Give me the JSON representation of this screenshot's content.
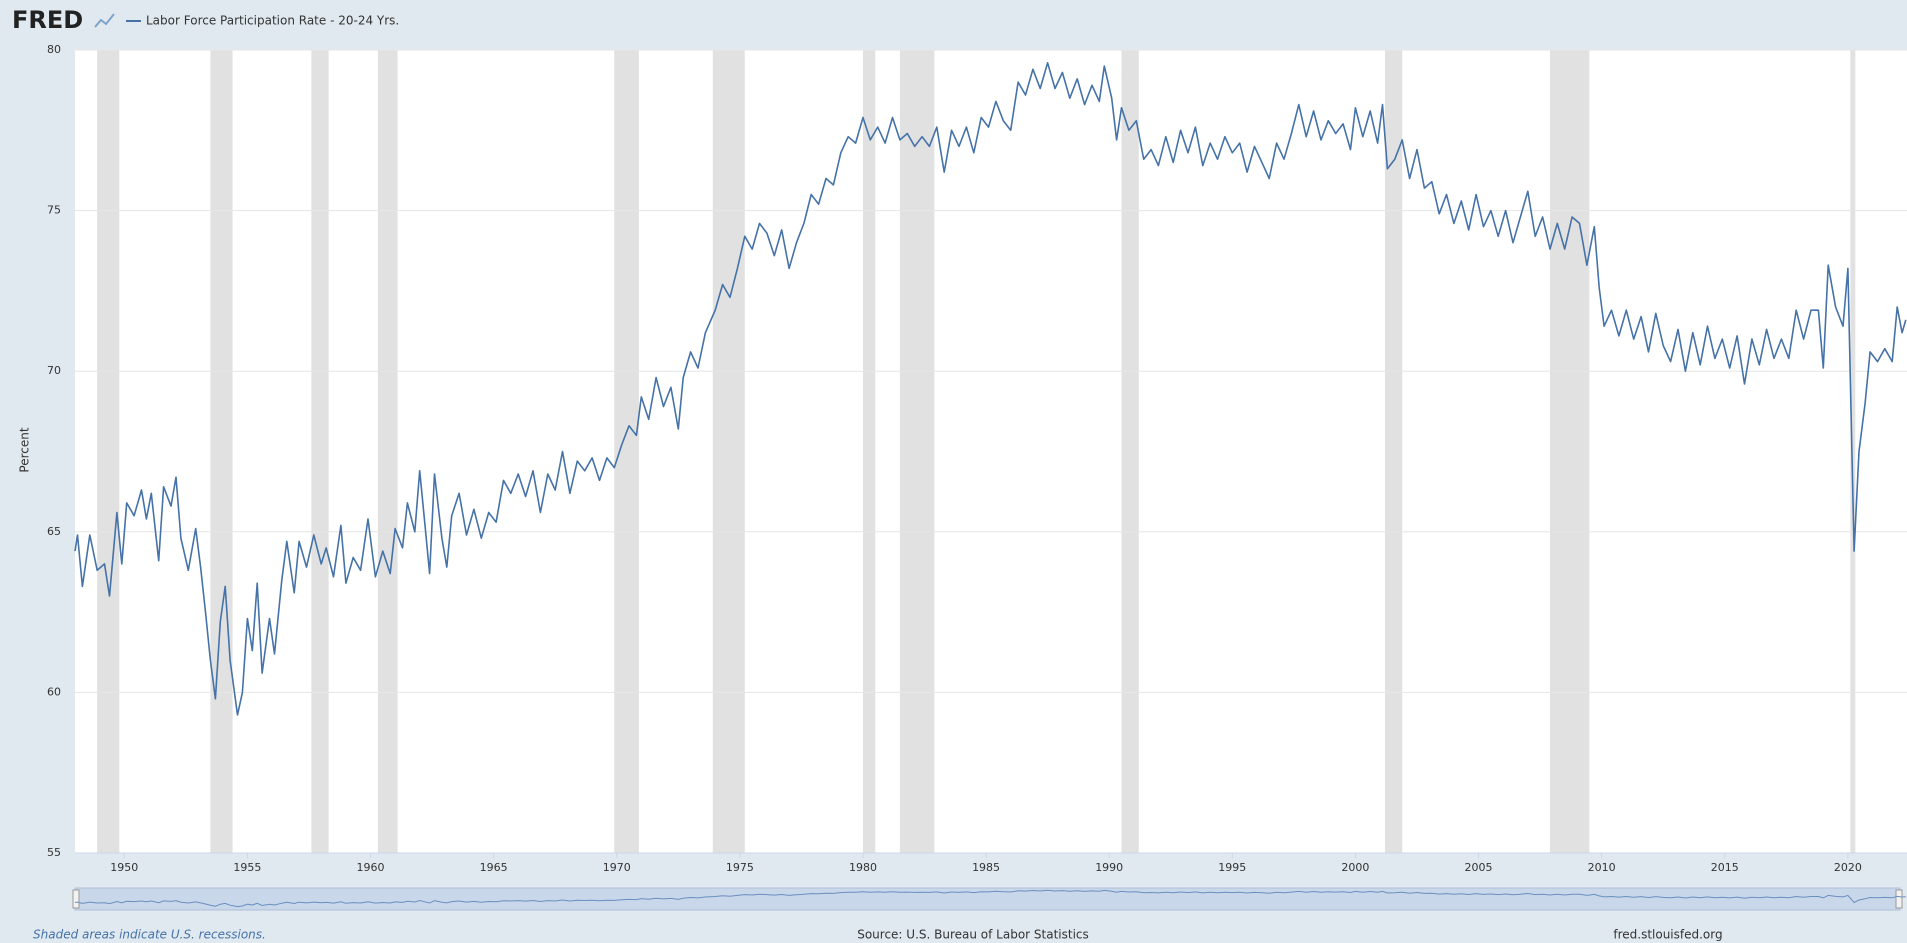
{
  "header": {
    "logo": "FRED"
  },
  "footer": {
    "note": "Shaded areas indicate U.S. recessions.",
    "source": "Source: U.S. Bureau of Labor Statistics",
    "site": "fred.stlouisfed.org"
  },
  "chart_data": {
    "type": "line",
    "ylabel": "Percent",
    "xlim": [
      1948,
      2022.4
    ],
    "ylim": [
      55,
      80
    ],
    "xticks": [
      1950,
      1955,
      1960,
      1965,
      1970,
      1975,
      1980,
      1985,
      1990,
      1995,
      2000,
      2005,
      2010,
      2015,
      2020
    ],
    "yticks": [
      55,
      60,
      65,
      70,
      75,
      80
    ],
    "grid": true,
    "recessions": [
      [
        1948.9,
        1949.8
      ],
      [
        1953.5,
        1954.4
      ],
      [
        1957.6,
        1958.3
      ],
      [
        1960.3,
        1961.1
      ],
      [
        1969.9,
        1970.9
      ],
      [
        1973.9,
        1975.2
      ],
      [
        1980.0,
        1980.5
      ],
      [
        1981.5,
        1982.9
      ],
      [
        1990.5,
        1991.2
      ],
      [
        2001.2,
        2001.9
      ],
      [
        2007.9,
        2009.5
      ],
      [
        2020.1,
        2020.3
      ]
    ],
    "recession_color": "#e1e1e1",
    "x": [
      1948.0,
      1948.1,
      1948.3,
      1948.6,
      1948.9,
      1949.2,
      1949.4,
      1949.7,
      1949.9,
      1950.1,
      1950.4,
      1950.7,
      1950.9,
      1951.1,
      1951.4,
      1951.6,
      1951.9,
      1952.1,
      1952.3,
      1952.6,
      1952.9,
      1953.1,
      1953.3,
      1953.5,
      1953.7,
      1953.9,
      1954.1,
      1954.3,
      1954.6,
      1954.8,
      1955.0,
      1955.2,
      1955.4,
      1955.6,
      1955.9,
      1956.1,
      1956.4,
      1956.6,
      1956.9,
      1957.1,
      1957.4,
      1957.7,
      1958.0,
      1958.2,
      1958.5,
      1958.8,
      1959.0,
      1959.3,
      1959.6,
      1959.9,
      1960.2,
      1960.5,
      1960.8,
      1961.0,
      1961.3,
      1961.5,
      1961.8,
      1962.0,
      1962.2,
      1962.4,
      1962.6,
      1962.9,
      1963.1,
      1963.3,
      1963.6,
      1963.9,
      1964.2,
      1964.5,
      1964.8,
      1965.1,
      1965.4,
      1965.7,
      1966.0,
      1966.3,
      1966.6,
      1966.9,
      1967.2,
      1967.5,
      1967.8,
      1968.1,
      1968.4,
      1968.7,
      1969.0,
      1969.3,
      1969.6,
      1969.9,
      1970.2,
      1970.5,
      1970.8,
      1971.0,
      1971.3,
      1971.6,
      1971.9,
      1972.2,
      1972.5,
      1972.7,
      1973.0,
      1973.3,
      1973.6,
      1974.0,
      1974.3,
      1974.6,
      1974.9,
      1975.2,
      1975.5,
      1975.8,
      1976.1,
      1976.4,
      1976.7,
      1977.0,
      1977.3,
      1977.6,
      1977.9,
      1978.2,
      1978.5,
      1978.8,
      1979.1,
      1979.4,
      1979.7,
      1980.0,
      1980.3,
      1980.6,
      1980.9,
      1981.2,
      1981.5,
      1981.8,
      1982.1,
      1982.4,
      1982.7,
      1983.0,
      1983.3,
      1983.6,
      1983.9,
      1984.2,
      1984.5,
      1984.8,
      1985.1,
      1985.4,
      1985.7,
      1986.0,
      1986.3,
      1986.6,
      1986.9,
      1987.2,
      1987.5,
      1987.8,
      1988.1,
      1988.4,
      1988.7,
      1989.0,
      1989.3,
      1989.6,
      1989.8,
      1990.1,
      1990.3,
      1990.5,
      1990.8,
      1991.1,
      1991.4,
      1991.7,
      1992.0,
      1992.3,
      1992.6,
      1992.9,
      1993.2,
      1993.5,
      1993.8,
      1994.1,
      1994.4,
      1994.7,
      1995.0,
      1995.3,
      1995.6,
      1995.9,
      1996.2,
      1996.5,
      1996.8,
      1997.1,
      1997.4,
      1997.7,
      1998.0,
      1998.3,
      1998.6,
      1998.9,
      1999.2,
      1999.5,
      1999.8,
      2000.0,
      2000.3,
      2000.6,
      2000.9,
      2001.1,
      2001.3,
      2001.6,
      2001.9,
      2002.2,
      2002.5,
      2002.8,
      2003.1,
      2003.4,
      2003.7,
      2004.0,
      2004.3,
      2004.6,
      2004.9,
      2005.2,
      2005.5,
      2005.8,
      2006.1,
      2006.4,
      2006.7,
      2007.0,
      2007.3,
      2007.6,
      2007.9,
      2008.2,
      2008.5,
      2008.8,
      2009.1,
      2009.4,
      2009.7,
      2009.9,
      2010.1,
      2010.4,
      2010.7,
      2011.0,
      2011.3,
      2011.6,
      2011.9,
      2012.2,
      2012.5,
      2012.8,
      2013.1,
      2013.4,
      2013.7,
      2014.0,
      2014.3,
      2014.6,
      2014.9,
      2015.2,
      2015.5,
      2015.8,
      2016.1,
      2016.4,
      2016.7,
      2017.0,
      2017.3,
      2017.6,
      2017.9,
      2018.2,
      2018.5,
      2018.8,
      2019.0,
      2019.2,
      2019.5,
      2019.8,
      2020.0,
      2020.25,
      2020.45,
      2020.7,
      2020.9,
      2021.2,
      2021.5,
      2021.8,
      2022.0,
      2022.2,
      2022.35
    ],
    "series": [
      {
        "name": "Labor Force Participation Rate - 20-24 Yrs.",
        "color": "#4572a7",
        "values": [
          64.4,
          64.9,
          63.3,
          64.9,
          63.8,
          64.0,
          63.0,
          65.6,
          64.0,
          65.9,
          65.5,
          66.3,
          65.4,
          66.2,
          64.1,
          66.4,
          65.8,
          66.7,
          64.8,
          63.8,
          65.1,
          63.9,
          62.5,
          61.0,
          59.8,
          62.2,
          63.3,
          61.0,
          59.3,
          60.0,
          62.3,
          61.3,
          63.4,
          60.6,
          62.3,
          61.2,
          63.5,
          64.7,
          63.1,
          64.7,
          63.9,
          64.9,
          64.0,
          64.5,
          63.6,
          65.2,
          63.4,
          64.2,
          63.8,
          65.4,
          63.6,
          64.4,
          63.7,
          65.1,
          64.5,
          65.9,
          65.0,
          66.9,
          65.3,
          63.7,
          66.8,
          64.8,
          63.9,
          65.5,
          66.2,
          64.9,
          65.7,
          64.8,
          65.6,
          65.3,
          66.6,
          66.2,
          66.8,
          66.1,
          66.9,
          65.6,
          66.8,
          66.3,
          67.5,
          66.2,
          67.2,
          66.9,
          67.3,
          66.6,
          67.3,
          67.0,
          67.7,
          68.3,
          68.0,
          69.2,
          68.5,
          69.8,
          68.9,
          69.5,
          68.2,
          69.8,
          70.6,
          70.1,
          71.2,
          71.9,
          72.7,
          72.3,
          73.2,
          74.2,
          73.8,
          74.6,
          74.3,
          73.6,
          74.4,
          73.2,
          74.0,
          74.6,
          75.5,
          75.2,
          76.0,
          75.8,
          76.8,
          77.3,
          77.1,
          77.9,
          77.2,
          77.6,
          77.1,
          77.9,
          77.2,
          77.4,
          77.0,
          77.3,
          77.0,
          77.6,
          76.2,
          77.5,
          77.0,
          77.6,
          76.8,
          77.9,
          77.6,
          78.4,
          77.8,
          77.5,
          79.0,
          78.6,
          79.4,
          78.8,
          79.6,
          78.8,
          79.3,
          78.5,
          79.1,
          78.3,
          78.9,
          78.4,
          79.5,
          78.5,
          77.2,
          78.2,
          77.5,
          77.8,
          76.6,
          76.9,
          76.4,
          77.3,
          76.5,
          77.5,
          76.8,
          77.6,
          76.4,
          77.1,
          76.6,
          77.3,
          76.8,
          77.1,
          76.2,
          77.0,
          76.5,
          76.0,
          77.1,
          76.6,
          77.4,
          78.3,
          77.3,
          78.1,
          77.2,
          77.8,
          77.4,
          77.7,
          76.9,
          78.2,
          77.3,
          78.1,
          77.1,
          78.3,
          76.3,
          76.6,
          77.2,
          76.0,
          76.9,
          75.7,
          75.9,
          74.9,
          75.5,
          74.6,
          75.3,
          74.4,
          75.5,
          74.5,
          75.0,
          74.2,
          75.0,
          74.0,
          74.8,
          75.6,
          74.2,
          74.8,
          73.8,
          74.6,
          73.8,
          74.8,
          74.6,
          73.3,
          74.5,
          72.6,
          71.4,
          71.9,
          71.1,
          71.9,
          71.0,
          71.7,
          70.6,
          71.8,
          70.8,
          70.3,
          71.3,
          70.0,
          71.2,
          70.2,
          71.4,
          70.4,
          71.0,
          70.1,
          71.1,
          69.6,
          71.0,
          70.2,
          71.3,
          70.4,
          71.0,
          70.4,
          71.9,
          71.0,
          71.9,
          71.9,
          70.1,
          73.3,
          72.0,
          71.4,
          73.2,
          64.4,
          67.5,
          69.0,
          70.6,
          70.3,
          70.7,
          70.3,
          72.0,
          71.2,
          71.6
        ]
      }
    ]
  }
}
